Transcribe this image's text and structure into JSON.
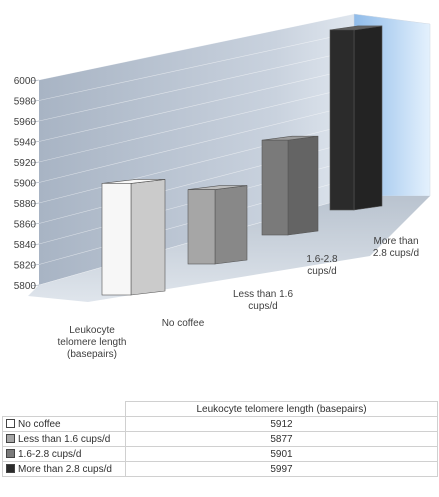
{
  "chart_data": {
    "type": "bar",
    "categories": [
      "No coffee",
      "Less than 1.6 cups/d",
      "1.6-2.8 cups/d",
      "More than 2.8 cups/d"
    ],
    "series": [
      {
        "name": "Leukocyte telomere length (basepairs)",
        "values": [
          5912,
          5877,
          5901,
          5997
        ]
      }
    ],
    "ylim": [
      5800,
      6000
    ],
    "yticks": [
      "5800",
      "5820",
      "5840",
      "5860",
      "5880",
      "5900",
      "5920",
      "5940",
      "5960",
      "5980",
      "6000"
    ],
    "xlabel": "",
    "ylabel": "",
    "depth_label_lines": [
      "Leukocyte",
      "telomere length",
      "(basepairs)"
    ],
    "category_label_lines": [
      [
        "No coffee"
      ],
      [
        "Less than 1.6",
        "cups/d"
      ],
      [
        "1.6-2.8",
        "cups/d"
      ],
      [
        "More than",
        "2.8 cups/d"
      ]
    ],
    "bar_colors": [
      "#f7f7f7",
      "#a6a6a6",
      "#7a7a7a",
      "#2b2b2b"
    ],
    "legend": "data-table-below",
    "style": "3d-column"
  },
  "table": {
    "header": "Leukocyte telomere length (basepairs)",
    "rows": [
      {
        "label": "No coffee",
        "value": "5912",
        "color": "#ffffff"
      },
      {
        "label": "Less than 1.6 cups/d",
        "value": "5877",
        "color": "#a6a6a6"
      },
      {
        "label": "1.6-2.8 cups/d",
        "value": "5901",
        "color": "#7a7a7a"
      },
      {
        "label": "More than 2.8 cups/d",
        "value": "5997",
        "color": "#2b2b2b"
      }
    ]
  }
}
